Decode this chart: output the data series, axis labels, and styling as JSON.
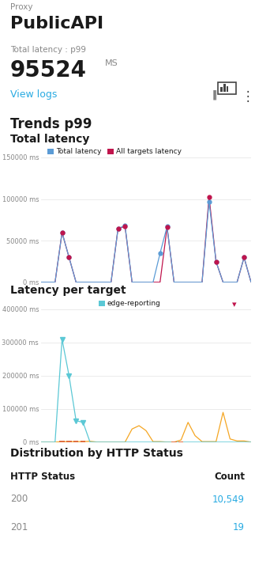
{
  "proxy_label": "Proxy",
  "proxy_name": "PublicAPI",
  "latency_label": "Total latency : p99",
  "latency_value": "95524",
  "latency_unit": "MS",
  "view_logs_text": "View logs",
  "trends_title": "Trends p99",
  "total_latency_title": "Total latency",
  "legend1_label1": "Total latency",
  "legend1_label2": "All targets latency",
  "legend1_color1": "#5b9bd5",
  "legend1_color2": "#c0144c",
  "total_latency_x": [
    0,
    1,
    2,
    3,
    4,
    5,
    6,
    7,
    8,
    9,
    10,
    11,
    12,
    13,
    14,
    15,
    16,
    17,
    18,
    19,
    20,
    21,
    22,
    23,
    24,
    25,
    26,
    27,
    28,
    29,
    30
  ],
  "total_latency_blue": [
    300,
    300,
    300,
    60000,
    30000,
    300,
    300,
    300,
    300,
    300,
    300,
    65000,
    68000,
    300,
    300,
    300,
    300,
    35000,
    67000,
    300,
    300,
    300,
    300,
    300,
    97000,
    25000,
    300,
    300,
    300,
    30000,
    300
  ],
  "total_latency_pink": [
    300,
    300,
    300,
    60000,
    30000,
    300,
    300,
    300,
    300,
    300,
    300,
    65000,
    67000,
    300,
    300,
    300,
    300,
    300,
    66000,
    300,
    300,
    300,
    300,
    300,
    103000,
    25000,
    300,
    300,
    300,
    30000,
    300
  ],
  "total_latency_ylim": [
    0,
    150000
  ],
  "total_latency_yticks": [
    0,
    50000,
    100000,
    150000
  ],
  "total_latency_yticklabels": [
    "0 ms",
    "50000 ms",
    "100000 ms",
    "150000 ms"
  ],
  "latency_per_target_title": "Latency per target",
  "legend2_label": "edge-reporting",
  "legend2_color": "#5bc8d5",
  "latency_per_target_x": [
    0,
    1,
    2,
    3,
    4,
    5,
    6,
    7,
    8,
    9,
    10,
    11,
    12,
    13,
    14,
    15,
    16,
    17,
    18,
    19,
    20,
    21,
    22,
    23,
    24,
    25,
    26,
    27,
    28,
    29,
    30
  ],
  "latency_per_target_cyan": [
    300,
    300,
    300,
    310000,
    200000,
    65000,
    60000,
    300,
    300,
    300,
    300,
    300,
    300,
    300,
    300,
    300,
    300,
    300,
    300,
    300,
    300,
    300,
    300,
    300,
    300,
    300,
    300,
    300,
    300,
    300,
    300
  ],
  "latency_per_target_orange": [
    300,
    300,
    300,
    2000,
    2000,
    2000,
    2000,
    3000,
    500,
    500,
    500,
    500,
    500,
    40000,
    50000,
    35000,
    2000,
    2000,
    500,
    500,
    7000,
    60000,
    20000,
    2000,
    2000,
    2000,
    90000,
    10000,
    4000,
    4000,
    500
  ],
  "latency_per_target_ylim": [
    0,
    400000
  ],
  "latency_per_target_yticks": [
    0,
    100000,
    200000,
    300000,
    400000
  ],
  "latency_per_target_yticklabels": [
    "0 ms",
    "100000 ms",
    "200000 ms",
    "300000 ms",
    "400000 ms"
  ],
  "orange_bar_color": "#e07040",
  "orange_bars1": [
    3,
    4,
    5,
    6
  ],
  "orange_bars2": [
    19,
    20
  ],
  "dist_title": "Distribution by HTTP Status",
  "dist_col1": "HTTP Status",
  "dist_col2": "Count",
  "dist_rows": [
    {
      "status": "200",
      "count": "10,549"
    },
    {
      "status": "201",
      "count": "19"
    }
  ],
  "dist_count_color": "#29abe2",
  "bg_color": "#ffffff",
  "text_color_dark": "#1a1a1a",
  "text_color_gray": "#888888",
  "text_color_blue": "#29abe2",
  "grid_color": "#e8e8e8",
  "separator_color": "#cccccc",
  "dropdown_arrow_color": "#c0144c"
}
